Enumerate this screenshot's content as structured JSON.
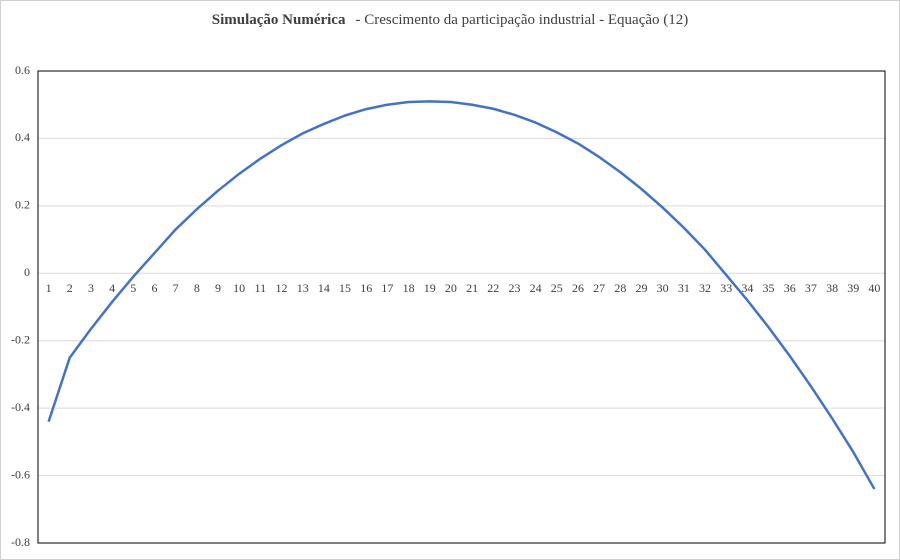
{
  "chart_data": {
    "type": "line",
    "title": {
      "bold": "Simulação Numérica",
      "rest": "- Crescimento da participação industrial - Equação (12)"
    },
    "categories": [
      "1",
      "2",
      "3",
      "4",
      "5",
      "6",
      "7",
      "8",
      "9",
      "10",
      "11",
      "12",
      "13",
      "14",
      "15",
      "16",
      "17",
      "18",
      "19",
      "20",
      "21",
      "22",
      "23",
      "24",
      "25",
      "26",
      "27",
      "28",
      "29",
      "30",
      "31",
      "32",
      "33",
      "34",
      "35",
      "36",
      "37",
      "38",
      "39",
      "40"
    ],
    "values": [
      -0.44,
      -0.25,
      -0.165,
      -0.085,
      -0.01,
      0.06,
      0.13,
      0.19,
      0.245,
      0.295,
      0.34,
      0.38,
      0.415,
      0.443,
      0.468,
      0.487,
      0.5,
      0.508,
      0.51,
      0.508,
      0.5,
      0.488,
      0.47,
      0.447,
      0.418,
      0.385,
      0.345,
      0.3,
      0.25,
      0.195,
      0.135,
      0.07,
      -0.005,
      -0.08,
      -0.16,
      -0.245,
      -0.335,
      -0.43,
      -0.53,
      -0.64
    ],
    "color": "#4472c4",
    "ylim": [
      -0.8,
      0.6
    ],
    "yticks": [
      -0.8,
      -0.6,
      -0.4,
      -0.2,
      0,
      0.2,
      0.4,
      0.6
    ],
    "grid": true
  }
}
